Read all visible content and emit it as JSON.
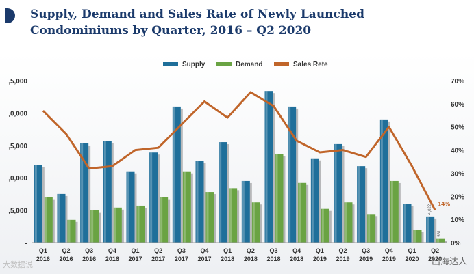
{
  "title": {
    "line1": "Supply, Demand and Sales Rate of Newly Launched",
    "line2": "Condominiums by Quarter, 2016 – Q2 2020"
  },
  "colors": {
    "title": "#1b3a6b",
    "supply": "#1f6f9a",
    "demand": "#6aa343",
    "sales_rate": "#c0652a"
  },
  "watermarks": {
    "left": "大数据说",
    "right": "出海达人"
  },
  "chart_data": {
    "type": "bar",
    "categories": [
      [
        "Q1",
        "2016"
      ],
      [
        "Q2",
        "2016"
      ],
      [
        "Q3",
        "2016"
      ],
      [
        "Q4",
        "2016"
      ],
      [
        "Q1",
        "2017"
      ],
      [
        "Q2",
        "2017"
      ],
      [
        "Q3",
        "2017"
      ],
      [
        "Q4",
        "2017"
      ],
      [
        "Q1",
        "2018"
      ],
      [
        "Q2",
        "2018"
      ],
      [
        "Q3",
        "2018"
      ],
      [
        "Q4",
        "2018"
      ],
      [
        "Q1",
        "2019"
      ],
      [
        "Q2",
        "2019"
      ],
      [
        "Q3",
        "2019"
      ],
      [
        "Q4",
        "2019"
      ],
      [
        "Q1",
        "2020"
      ],
      [
        "Q2",
        "2020"
      ]
    ],
    "series": [
      {
        "name": "Supply",
        "axis": "left",
        "type": "bar",
        "values": [
          12000,
          7500,
          15300,
          15700,
          11000,
          13900,
          21000,
          12600,
          15500,
          9500,
          23400,
          21000,
          13000,
          15200,
          11800,
          19000,
          6000,
          4022
        ]
      },
      {
        "name": "Demand",
        "axis": "left",
        "type": "bar",
        "values": [
          7000,
          3500,
          5000,
          5400,
          5700,
          7000,
          11000,
          7800,
          8400,
          6200,
          13700,
          9200,
          5200,
          6200,
          4400,
          9500,
          2000,
          561
        ]
      },
      {
        "name": "Sales Rete",
        "axis": "right",
        "type": "line",
        "values": [
          57,
          47,
          32,
          33,
          40,
          41,
          51,
          61,
          54,
          65,
          59,
          44,
          39,
          40,
          37,
          50,
          33,
          14
        ]
      }
    ],
    "yticks_left": [
      ",5,000",
      ",0,000",
      ",5,000",
      ",0,000",
      ",5,000",
      "-"
    ],
    "yticks_right": [
      "70%",
      "60%",
      "50%",
      "40%",
      "30%",
      "20%",
      "10%",
      "0%"
    ],
    "ylim_left": [
      0,
      25000
    ],
    "ylim_right": [
      0,
      70
    ],
    "annotations": [
      {
        "series": "Sales Rete",
        "index": 17,
        "text": "14%"
      },
      {
        "series": "Supply",
        "index": 17,
        "text": "4,022"
      },
      {
        "series": "Demand",
        "index": 17,
        "text": "561"
      }
    ],
    "legend_position": "top-center",
    "grid": false
  }
}
